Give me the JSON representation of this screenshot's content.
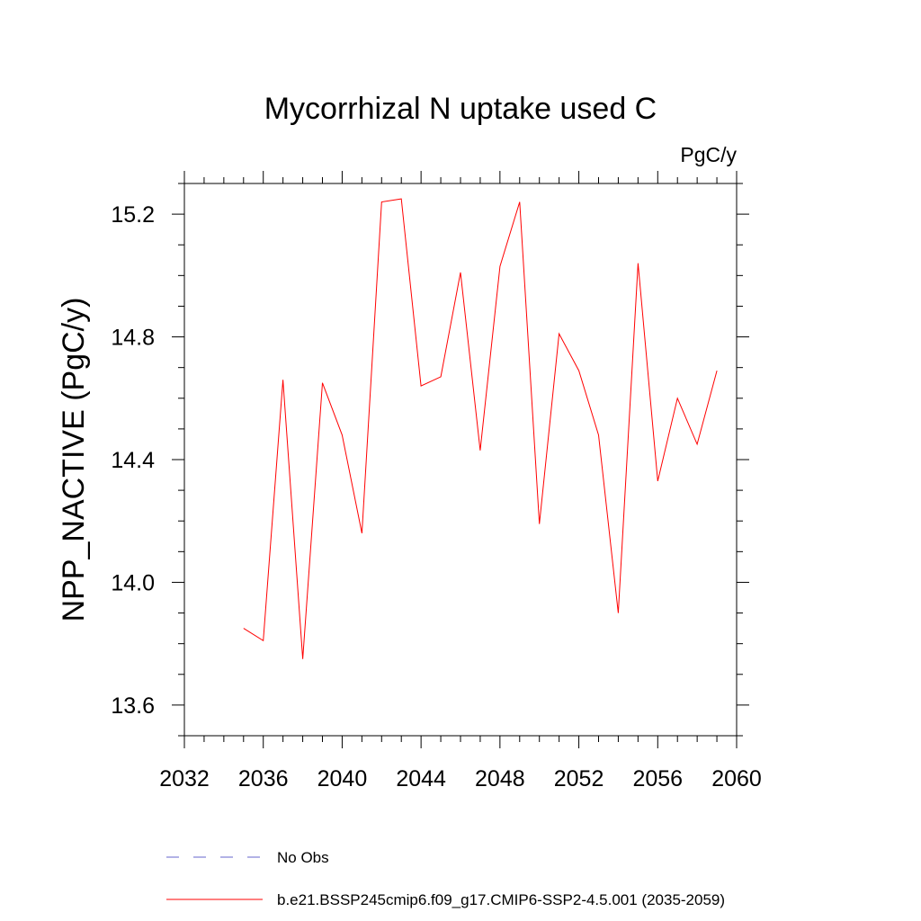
{
  "chart_data": {
    "type": "line",
    "title": "Mycorrhizal N uptake used C",
    "units": "PgC/y",
    "ylabel": "NPP_NACTIVE  (PgC/y)",
    "xlabel": "",
    "xlim": [
      2032,
      2060
    ],
    "ylim": [
      13.5,
      15.3
    ],
    "x_ticks": [
      2032,
      2036,
      2040,
      2044,
      2048,
      2052,
      2056,
      2060
    ],
    "x_tick_labels": [
      "2032",
      "2036",
      "2040",
      "2044",
      "2048",
      "2052",
      "2056",
      "2060"
    ],
    "y_ticks": [
      13.6,
      14.0,
      14.4,
      14.8,
      15.2
    ],
    "y_tick_labels": [
      "13.6",
      "14.0",
      "14.4",
      "14.8",
      "15.2"
    ],
    "grid": false,
    "legend_position": "bottom",
    "series": [
      {
        "name": "b.e21.BSSP245cmip6.f09_g17.CMIP6-SSP2-4.5.001 (2035-2059)",
        "color": "#ff0000",
        "style": "solid",
        "x": [
          2035,
          2036,
          2037,
          2038,
          2039,
          2040,
          2041,
          2042,
          2043,
          2044,
          2045,
          2046,
          2047,
          2048,
          2049,
          2050,
          2051,
          2052,
          2053,
          2054,
          2055,
          2056,
          2057,
          2058,
          2059
        ],
        "y": [
          13.85,
          13.81,
          14.66,
          13.75,
          14.65,
          14.48,
          14.16,
          15.24,
          15.25,
          14.64,
          14.67,
          15.01,
          14.43,
          15.03,
          15.24,
          14.19,
          14.81,
          14.69,
          14.48,
          13.9,
          15.04,
          14.33,
          14.6,
          14.45,
          14.69
        ]
      }
    ],
    "legend": [
      {
        "label": "No Obs",
        "color": "#6666cc",
        "style": "dashed"
      },
      {
        "label": "b.e21.BSSP245cmip6.f09_g17.CMIP6-SSP2-4.5.001 (2035-2059)",
        "color": "#ff0000",
        "style": "solid"
      }
    ]
  }
}
